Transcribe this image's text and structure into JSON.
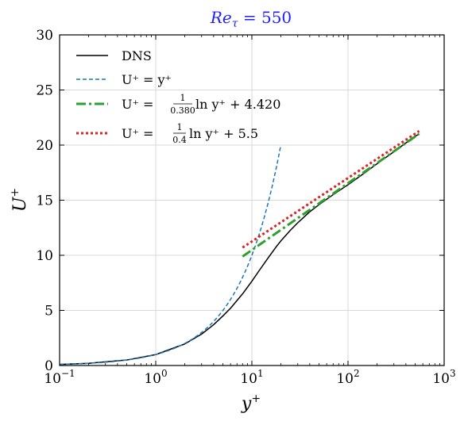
{
  "chart_data": {
    "type": "line",
    "title": "Re_τ = 550",
    "title_parts": {
      "re": "Re",
      "sub": "τ",
      "rest": " = 550"
    },
    "xlabel": {
      "base": "y",
      "sup": "+"
    },
    "ylabel": {
      "base": "U",
      "sup": "+"
    },
    "xscale": "log",
    "xlim": [
      0.1,
      1000
    ],
    "ylim": [
      0,
      30
    ],
    "grid": true,
    "legend_position": "top-left",
    "x_ticks": [
      {
        "value": 0.1,
        "base": "10",
        "exp": "−1"
      },
      {
        "value": 1,
        "base": "10",
        "exp": "0"
      },
      {
        "value": 10,
        "base": "10",
        "exp": "1"
      },
      {
        "value": 100,
        "base": "10",
        "exp": "2"
      },
      {
        "value": 1000,
        "base": "10",
        "exp": "3"
      }
    ],
    "y_ticks": [
      {
        "value": 0,
        "label": "0"
      },
      {
        "value": 5,
        "label": "5"
      },
      {
        "value": 10,
        "label": "10"
      },
      {
        "value": 15,
        "label": "15"
      },
      {
        "value": 20,
        "label": "20"
      },
      {
        "value": 25,
        "label": "25"
      },
      {
        "value": 30,
        "label": "30"
      }
    ],
    "series": [
      {
        "name": "DNS",
        "color": "#000000",
        "style": "solid",
        "x": [
          0.1,
          0.2,
          0.5,
          1,
          2,
          3,
          4,
          5,
          6,
          8,
          10,
          12,
          15,
          18,
          20,
          25,
          30,
          40,
          50,
          70,
          100,
          150,
          200,
          300,
          400,
          500,
          550
        ],
        "y": [
          0.1,
          0.2,
          0.5,
          0.99,
          1.95,
          2.85,
          3.7,
          4.5,
          5.2,
          6.5,
          7.65,
          8.65,
          9.85,
          10.8,
          11.3,
          12.25,
          12.95,
          13.95,
          14.6,
          15.5,
          16.4,
          17.5,
          18.3,
          19.4,
          20.2,
          20.8,
          21.0
        ]
      },
      {
        "name": "U⁺ = y⁺",
        "color": "#1f77b4",
        "style": "dashed",
        "x_range": [
          0.1,
          20
        ],
        "formula": "linear"
      },
      {
        "name": "U⁺ = 1/0.380 ln y⁺ + 4.420",
        "label_parts": {
          "lhs": "U⁺ = ",
          "num": "1",
          "den": "0.380",
          "rhs": "ln y⁺ + 4.420"
        },
        "color": "#2ca02c",
        "style": "dashdot",
        "x_range": [
          8,
          550
        ],
        "kappa": 0.38,
        "B": 4.42
      },
      {
        "name": "U⁺ = 1/0.4 ln y⁺ + 5.5",
        "label_parts": {
          "lhs": "U⁺ = ",
          "num": "1",
          "den": "0.4",
          "rhs": "ln y⁺ + 5.5"
        },
        "color": "#d62728",
        "style": "dotted",
        "x_range": [
          8,
          550
        ],
        "kappa": 0.4,
        "B": 5.5
      }
    ]
  }
}
